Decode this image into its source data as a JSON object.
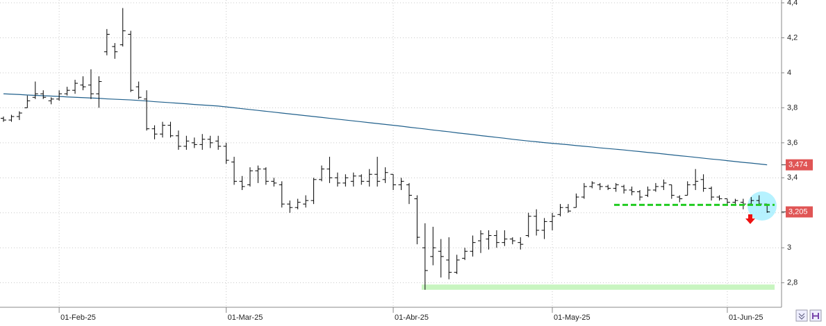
{
  "chart_data": {
    "type": "ohlc",
    "categories": [
      null,
      null,
      null,
      null,
      null,
      null,
      null,
      "01-Feb-25",
      null,
      null,
      null,
      null,
      null,
      null,
      null,
      null,
      null,
      null,
      null,
      null,
      null,
      null,
      null,
      null,
      null,
      null,
      null,
      null,
      "01-Mar-25",
      null,
      null,
      null,
      null,
      null,
      null,
      null,
      null,
      null,
      null,
      null,
      null,
      null,
      null,
      null,
      null,
      null,
      null,
      null,
      null,
      "01-Abr-25",
      null,
      null,
      null,
      null,
      null,
      null,
      null,
      null,
      null,
      null,
      null,
      null,
      null,
      null,
      null,
      null,
      null,
      null,
      null,
      "01-May-25",
      null,
      null,
      null,
      null,
      null,
      null,
      null,
      null,
      null,
      null,
      null,
      null,
      null,
      null,
      null,
      null,
      null,
      null,
      null,
      null,
      null,
      "01-Jun-25",
      null,
      null,
      null,
      null,
      null
    ],
    "high": [
      3.75,
      3.76,
      3.78,
      3.87,
      3.95,
      3.9,
      3.86,
      3.9,
      3.92,
      3.96,
      3.98,
      4.02,
      3.98,
      4.25,
      4.17,
      4.37,
      4.24,
      3.95,
      3.9,
      3.7,
      3.72,
      3.72,
      3.67,
      3.64,
      3.63,
      3.65,
      3.64,
      3.64,
      3.6,
      3.52,
      3.41,
      3.46,
      3.47,
      3.46,
      3.4,
      3.38,
      3.27,
      3.28,
      3.3,
      3.4,
      3.47,
      3.52,
      3.43,
      3.42,
      3.43,
      3.42,
      3.45,
      3.52,
      3.46,
      3.42,
      3.4,
      3.37,
      3.3,
      3.14,
      3.12,
      3.05,
      3.06,
      2.96,
      3.0,
      3.07,
      3.1,
      3.1,
      3.1,
      3.1,
      3.06,
      3.06,
      3.2,
      3.22,
      3.17,
      3.2,
      3.25,
      3.25,
      3.31,
      3.37,
      3.38,
      3.37,
      3.36,
      3.37,
      3.36,
      3.35,
      3.33,
      3.35,
      3.37,
      3.39,
      3.36,
      3.3,
      3.38,
      3.45,
      3.42,
      3.35,
      3.3,
      3.28,
      3.28,
      3.28,
      3.29,
      3.3,
      3.25
    ],
    "low": [
      3.72,
      3.72,
      3.73,
      3.8,
      3.85,
      3.85,
      3.82,
      3.84,
      3.87,
      3.88,
      3.9,
      3.85,
      3.8,
      4.1,
      4.08,
      4.15,
      3.89,
      3.85,
      3.67,
      3.62,
      3.63,
      3.63,
      3.56,
      3.56,
      3.57,
      3.56,
      3.57,
      3.56,
      3.48,
      3.36,
      3.33,
      3.35,
      3.37,
      3.36,
      3.35,
      3.23,
      3.2,
      3.22,
      3.23,
      3.25,
      3.38,
      3.37,
      3.35,
      3.35,
      3.35,
      3.36,
      3.35,
      3.35,
      3.37,
      3.33,
      3.33,
      3.25,
      3.02,
      2.76,
      2.9,
      2.83,
      2.82,
      2.85,
      2.93,
      2.95,
      2.97,
      2.99,
      3.0,
      3.01,
      3.02,
      2.99,
      3.06,
      3.07,
      3.05,
      3.1,
      3.18,
      3.2,
      3.23,
      3.28,
      3.34,
      3.33,
      3.33,
      3.32,
      3.31,
      3.3,
      3.27,
      3.29,
      3.32,
      3.33,
      3.28,
      3.26,
      3.3,
      3.33,
      3.32,
      3.27,
      3.27,
      3.24,
      3.25,
      3.22,
      3.25,
      3.24,
      3.2
    ],
    "open": [
      3.74,
      3.73,
      3.75,
      3.8,
      3.86,
      3.88,
      3.84,
      3.85,
      3.88,
      3.9,
      3.93,
      3.93,
      3.88,
      4.12,
      4.15,
      4.16,
      4.22,
      3.92,
      3.85,
      3.68,
      3.65,
      3.7,
      3.64,
      3.58,
      3.6,
      3.59,
      3.62,
      3.61,
      3.58,
      3.49,
      3.38,
      3.36,
      3.44,
      3.45,
      3.38,
      3.36,
      3.25,
      3.23,
      3.25,
      3.27,
      3.39,
      3.45,
      3.4,
      3.37,
      3.38,
      3.41,
      3.38,
      3.42,
      3.39,
      3.42,
      3.36,
      3.36,
      3.28,
      3.0,
      2.95,
      2.98,
      2.93,
      2.86,
      2.94,
      2.98,
      3.04,
      3.05,
      3.07,
      3.03,
      3.05,
      3.03,
      3.07,
      3.18,
      3.1,
      3.15,
      3.19,
      3.23,
      3.23,
      3.29,
      3.35,
      3.36,
      3.35,
      3.34,
      3.35,
      3.33,
      3.32,
      3.3,
      3.33,
      3.35,
      3.36,
      3.29,
      3.3,
      3.36,
      3.39,
      3.34,
      3.29,
      3.28,
      3.26,
      3.26,
      3.25,
      3.27,
      3.25
    ],
    "close": [
      3.73,
      3.75,
      3.77,
      3.84,
      3.88,
      3.86,
      3.85,
      3.88,
      3.9,
      3.94,
      3.92,
      3.88,
      3.95,
      4.22,
      4.12,
      4.24,
      3.9,
      3.86,
      3.68,
      3.65,
      3.7,
      3.64,
      3.58,
      3.61,
      3.59,
      3.62,
      3.6,
      3.58,
      3.5,
      3.38,
      3.35,
      3.44,
      3.45,
      3.38,
      3.37,
      3.25,
      3.23,
      3.26,
      3.27,
      3.39,
      3.45,
      3.4,
      3.37,
      3.4,
      3.41,
      3.38,
      3.42,
      3.38,
      3.43,
      3.36,
      3.38,
      3.3,
      3.06,
      2.87,
      3.0,
      2.95,
      2.86,
      2.93,
      2.98,
      3.03,
      3.08,
      3.07,
      3.03,
      3.05,
      3.04,
      3.02,
      3.18,
      3.1,
      3.15,
      3.18,
      3.23,
      3.21,
      3.29,
      3.35,
      3.37,
      3.35,
      3.34,
      3.36,
      3.33,
      3.32,
      3.29,
      3.33,
      3.35,
      3.37,
      3.3,
      3.28,
      3.36,
      3.38,
      3.34,
      3.29,
      3.28,
      3.26,
      3.27,
      3.25,
      3.27,
      3.25,
      3.205
    ],
    "color": "#000000",
    "moving_average": {
      "color": "#1f5f8b",
      "values": [
        3.88,
        3.878,
        3.876,
        3.873,
        3.871,
        3.869,
        3.867,
        3.865,
        3.862,
        3.86,
        3.858,
        3.856,
        3.854,
        3.851,
        3.849,
        3.847,
        3.845,
        3.842,
        3.839,
        3.835,
        3.832,
        3.829,
        3.826,
        3.823,
        3.819,
        3.816,
        3.813,
        3.81,
        3.805,
        3.8,
        3.795,
        3.79,
        3.785,
        3.78,
        3.775,
        3.77,
        3.765,
        3.76,
        3.755,
        3.75,
        3.745,
        3.74,
        3.735,
        3.73,
        3.725,
        3.72,
        3.715,
        3.71,
        3.705,
        3.7,
        3.695,
        3.689,
        3.684,
        3.679,
        3.673,
        3.668,
        3.663,
        3.657,
        3.652,
        3.647,
        3.641,
        3.636,
        3.631,
        3.626,
        3.62,
        3.615,
        3.61,
        3.606,
        3.601,
        3.597,
        3.593,
        3.589,
        3.584,
        3.58,
        3.576,
        3.571,
        3.567,
        3.563,
        3.559,
        3.554,
        3.55,
        3.545,
        3.541,
        3.536,
        3.531,
        3.526,
        3.522,
        3.517,
        3.512,
        3.507,
        3.503,
        3.498,
        3.493,
        3.488,
        3.484,
        3.479,
        3.474
      ]
    },
    "price_labels": [
      {
        "value": 3.474,
        "label": "3,474",
        "color": "#e05555"
      },
      {
        "value": 3.205,
        "label": "3,205",
        "color": "#e05555"
      }
    ],
    "support_level": {
      "value": 3.245,
      "color": "#22cc22"
    },
    "support_band": {
      "low": 2.76,
      "high": 2.79,
      "color": "#c8f5c0"
    },
    "ylim": [
      2.66,
      4.416
    ],
    "yticks": [
      {
        "value": 2.8,
        "label": "2,8"
      },
      3,
      {
        "value": 3.2,
        "label": "3,2"
      },
      {
        "value": 3.4,
        "label": "3,4"
      },
      {
        "value": 3.6,
        "label": "3,6"
      },
      {
        "value": 3.8,
        "label": "3,8"
      },
      4,
      {
        "value": 4.2,
        "label": "4,2"
      },
      {
        "value": 4.4,
        "label": "4,4"
      }
    ],
    "grid": true
  }
}
